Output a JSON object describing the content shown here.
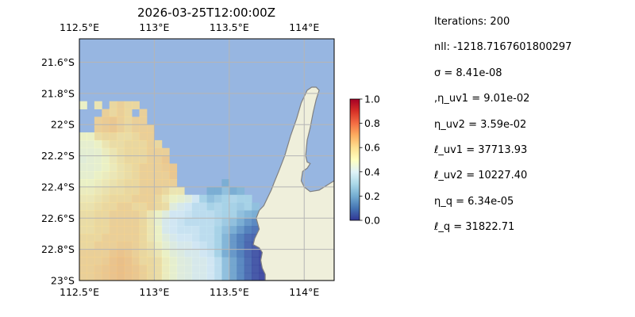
{
  "chart_data": {
    "type": "heatmap",
    "title": "2026-03-25T12:00:00Z",
    "x_axis": {
      "range": [
        112.5,
        114.2
      ],
      "ticks": [
        112.5,
        113.0,
        113.5,
        114.0
      ],
      "tick_labels": [
        "112.5°E",
        "113°E",
        "113.5°E",
        "114°E"
      ]
    },
    "y_axis": {
      "range": [
        -23.0,
        -21.45
      ],
      "ticks": [
        -21.6,
        -21.8,
        -22.0,
        -22.2,
        -22.4,
        -22.6,
        -22.8,
        -23.0
      ],
      "tick_labels": [
        "21.6°S",
        "21.8°S",
        "22°S",
        "22.2°S",
        "22.4°S",
        "22.6°S",
        "22.8°S",
        "23°S"
      ]
    },
    "grid": true,
    "colormap": "RdYlBu_r",
    "colorbar": {
      "range": [
        0.0,
        1.0
      ],
      "ticks": [
        0.0,
        0.2,
        0.4,
        0.6,
        0.8,
        1.0
      ],
      "tick_labels": [
        "0.0",
        "0.2",
        "0.4",
        "0.6",
        "0.8",
        "1.0"
      ]
    },
    "colors": {
      "ocean": "#97b6e1",
      "land": "#efefdb",
      "coast": "#808080",
      "grid": "#b5b5b5"
    },
    "field": {
      "lon_min": 112.5,
      "lat_max": -21.8,
      "dlon": 0.05,
      "dlat": 0.05,
      "ncols": 26,
      "nrows": 25,
      "opacity": 0.8,
      "rows": [
        [
          null,
          null,
          null,
          null,
          null,
          null,
          null,
          null,
          null,
          null,
          null,
          null,
          null,
          null,
          null,
          null,
          null,
          null,
          null,
          null,
          null,
          null,
          null,
          null,
          null,
          null
        ],
        [
          0.5,
          null,
          0.55,
          null,
          0.6,
          0.62,
          0.6,
          0.6,
          null,
          null,
          null,
          null,
          null,
          null,
          null,
          null,
          null,
          null,
          null,
          null,
          null,
          null,
          null,
          null,
          null,
          null
        ],
        [
          null,
          null,
          null,
          0.62,
          0.6,
          0.62,
          0.6,
          null,
          0.62,
          null,
          null,
          null,
          null,
          null,
          null,
          null,
          null,
          null,
          null,
          null,
          null,
          null,
          null,
          null,
          null,
          null
        ],
        [
          null,
          null,
          0.62,
          0.63,
          0.64,
          0.62,
          0.6,
          0.62,
          0.62,
          null,
          null,
          null,
          null,
          null,
          null,
          null,
          null,
          null,
          null,
          null,
          null,
          null,
          null,
          null,
          null,
          null
        ],
        [
          null,
          null,
          0.62,
          0.63,
          0.64,
          0.62,
          0.6,
          0.62,
          0.62,
          0.62,
          null,
          null,
          null,
          null,
          null,
          null,
          null,
          null,
          null,
          null,
          null,
          null,
          null,
          null,
          null,
          null
        ],
        [
          0.5,
          0.5,
          0.58,
          0.6,
          0.6,
          0.58,
          0.58,
          0.6,
          0.62,
          0.62,
          null,
          null,
          null,
          null,
          null,
          null,
          null,
          null,
          null,
          null,
          null,
          null,
          null,
          null,
          null,
          null
        ],
        [
          0.48,
          0.48,
          0.5,
          0.55,
          0.58,
          0.58,
          0.6,
          0.6,
          0.6,
          0.62,
          0.6,
          null,
          null,
          null,
          null,
          null,
          null,
          null,
          null,
          null,
          null,
          null,
          null,
          null,
          null,
          null
        ],
        [
          0.47,
          0.47,
          0.48,
          0.52,
          0.55,
          0.58,
          0.6,
          0.6,
          0.6,
          0.62,
          0.62,
          0.62,
          null,
          null,
          null,
          null,
          null,
          null,
          null,
          null,
          null,
          null,
          null,
          null,
          null,
          null
        ],
        [
          0.46,
          0.47,
          0.48,
          0.5,
          0.54,
          0.57,
          0.6,
          0.6,
          0.6,
          0.62,
          0.62,
          0.64,
          null,
          null,
          null,
          null,
          null,
          null,
          null,
          null,
          null,
          null,
          null,
          null,
          null,
          null
        ],
        [
          0.47,
          0.47,
          0.48,
          0.5,
          0.53,
          0.56,
          0.58,
          0.6,
          0.62,
          0.62,
          0.62,
          0.63,
          0.64,
          null,
          null,
          null,
          null,
          null,
          null,
          null,
          null,
          null,
          null,
          null,
          null,
          null
        ],
        [
          0.48,
          0.48,
          0.5,
          0.52,
          0.54,
          0.56,
          0.58,
          0.6,
          0.62,
          0.62,
          0.62,
          0.62,
          0.64,
          null,
          null,
          null,
          null,
          null,
          null,
          null,
          null,
          null,
          null,
          null,
          null,
          null
        ],
        [
          0.5,
          0.5,
          0.52,
          0.54,
          0.56,
          0.58,
          0.6,
          0.6,
          0.62,
          0.62,
          0.62,
          0.62,
          0.62,
          null,
          null,
          null,
          null,
          null,
          null,
          0.2,
          null,
          null,
          null,
          null,
          null,
          null
        ],
        [
          0.52,
          0.52,
          0.54,
          0.56,
          0.58,
          0.58,
          0.6,
          0.6,
          0.62,
          0.62,
          0.62,
          0.6,
          0.55,
          0.55,
          null,
          null,
          null,
          0.2,
          0.2,
          0.25,
          0.2,
          0.22,
          null,
          null,
          null,
          null
        ],
        [
          0.54,
          0.54,
          0.56,
          0.58,
          0.6,
          0.6,
          0.6,
          0.62,
          0.62,
          0.62,
          0.6,
          0.55,
          0.5,
          0.48,
          0.45,
          0.4,
          0.3,
          0.25,
          0.28,
          0.3,
          0.32,
          0.3,
          0.3,
          null,
          null,
          null
        ],
        [
          0.56,
          0.56,
          0.58,
          0.6,
          0.6,
          0.62,
          0.62,
          0.6,
          0.6,
          0.62,
          0.6,
          0.58,
          0.45,
          0.42,
          0.4,
          0.35,
          0.35,
          0.3,
          0.32,
          0.3,
          0.3,
          0.28,
          0.3,
          0.25,
          null,
          null
        ],
        [
          0.58,
          0.58,
          0.6,
          0.6,
          0.62,
          0.62,
          0.62,
          0.62,
          0.6,
          0.55,
          0.5,
          0.45,
          0.4,
          0.4,
          0.38,
          0.35,
          0.35,
          0.35,
          0.32,
          0.3,
          0.3,
          0.25,
          0.22,
          0.2,
          0.15,
          null
        ],
        [
          0.58,
          0.58,
          0.6,
          0.6,
          0.62,
          0.62,
          0.62,
          0.62,
          0.6,
          0.55,
          0.48,
          0.42,
          0.4,
          0.38,
          0.35,
          0.35,
          0.35,
          0.35,
          0.32,
          0.28,
          0.25,
          0.2,
          0.15,
          0.12,
          0.1,
          null
        ],
        [
          0.58,
          0.58,
          0.6,
          0.6,
          0.62,
          0.62,
          0.62,
          0.62,
          0.6,
          0.55,
          0.5,
          0.42,
          0.4,
          0.38,
          0.38,
          0.38,
          0.35,
          0.35,
          0.3,
          0.25,
          0.2,
          0.15,
          0.1,
          0.08,
          0.05,
          0.05
        ],
        [
          0.6,
          0.6,
          0.6,
          0.62,
          0.62,
          0.62,
          0.62,
          0.62,
          0.6,
          0.55,
          0.5,
          0.45,
          0.42,
          0.4,
          0.4,
          0.38,
          0.35,
          0.35,
          0.3,
          0.22,
          0.15,
          0.1,
          0.06,
          0.05,
          0.04,
          0.04
        ],
        [
          0.6,
          0.6,
          0.62,
          0.62,
          0.62,
          0.63,
          0.63,
          0.62,
          0.6,
          0.57,
          0.52,
          0.47,
          0.44,
          0.42,
          0.42,
          0.4,
          0.38,
          0.35,
          0.3,
          0.22,
          0.15,
          0.1,
          0.05,
          0.03,
          0.02,
          0.02
        ],
        [
          0.62,
          0.62,
          0.62,
          0.62,
          0.64,
          0.65,
          0.64,
          0.62,
          0.6,
          0.58,
          0.55,
          0.5,
          0.46,
          0.44,
          0.42,
          0.42,
          0.4,
          0.38,
          0.3,
          0.2,
          0.15,
          0.1,
          0.05,
          0.02,
          0.0,
          0.0
        ],
        [
          0.62,
          0.62,
          0.62,
          0.63,
          0.65,
          0.66,
          0.65,
          0.63,
          0.6,
          0.6,
          0.58,
          0.52,
          0.48,
          0.45,
          0.44,
          0.42,
          0.42,
          0.4,
          0.35,
          0.25,
          0.18,
          0.12,
          0.06,
          0.02,
          0.0,
          0.0
        ],
        [
          0.62,
          0.62,
          0.63,
          0.64,
          0.65,
          0.66,
          0.65,
          0.64,
          0.62,
          0.6,
          0.58,
          0.52,
          0.48,
          0.45,
          0.44,
          0.42,
          0.42,
          0.4,
          0.35,
          0.25,
          0.18,
          0.12,
          0.06,
          0.02,
          0.0,
          0.0
        ],
        [
          0.62,
          0.62,
          0.63,
          0.64,
          0.65,
          0.66,
          0.65,
          0.64,
          0.62,
          0.6,
          0.58,
          0.52,
          0.48,
          0.45,
          0.44,
          0.42,
          0.42,
          0.4,
          0.35,
          0.25,
          0.18,
          0.12,
          0.06,
          0.02,
          0.0,
          0.0
        ],
        [
          0.62,
          0.62,
          0.63,
          0.64,
          0.65,
          0.66,
          0.65,
          0.64,
          0.62,
          0.6,
          0.58,
          0.52,
          0.48,
          0.45,
          0.44,
          0.42,
          0.42,
          0.4,
          0.35,
          0.25,
          0.18,
          0.12,
          0.06,
          0.02,
          0.0,
          0.0
        ]
      ]
    },
    "coastline": [
      [
        114.02,
        -21.78
      ],
      [
        114.05,
        -21.76
      ],
      [
        114.08,
        -21.76
      ],
      [
        114.1,
        -21.78
      ],
      [
        114.08,
        -21.84
      ],
      [
        114.06,
        -21.92
      ],
      [
        114.04,
        -22.02
      ],
      [
        114.02,
        -22.1
      ],
      [
        114.01,
        -22.2
      ],
      [
        114.02,
        -22.24
      ],
      [
        114.04,
        -22.25
      ],
      [
        114.02,
        -22.28
      ],
      [
        113.99,
        -22.3
      ],
      [
        113.98,
        -22.36
      ],
      [
        114.0,
        -22.4
      ],
      [
        114.04,
        -22.43
      ],
      [
        114.1,
        -22.42
      ],
      [
        114.2,
        -22.36
      ],
      [
        114.2,
        -23.0
      ],
      [
        113.74,
        -23.0
      ],
      [
        113.74,
        -22.96
      ],
      [
        113.72,
        -22.92
      ],
      [
        113.71,
        -22.87
      ],
      [
        113.72,
        -22.82
      ],
      [
        113.7,
        -22.79
      ],
      [
        113.66,
        -22.77
      ],
      [
        113.67,
        -22.73
      ],
      [
        113.7,
        -22.67
      ],
      [
        113.68,
        -22.6
      ],
      [
        113.7,
        -22.55
      ],
      [
        113.73,
        -22.52
      ],
      [
        113.76,
        -22.46
      ],
      [
        113.78,
        -22.42
      ],
      [
        113.8,
        -22.37
      ],
      [
        113.83,
        -22.3
      ],
      [
        113.87,
        -22.2
      ],
      [
        113.91,
        -22.07
      ],
      [
        113.95,
        -21.96
      ],
      [
        113.98,
        -21.86
      ],
      [
        114.02,
        -21.78
      ]
    ]
  },
  "info": {
    "iterations": "Iterations: 200",
    "nll": "nll: -1218.7167601800297",
    "sigma": "σ = 8.41e-08",
    "eta_uv1": ",η_uv1 = 9.01e-02",
    "eta_uv2": "η_uv2 = 3.59e-02",
    "ell_uv1": "ℓ_uv1 = 37713.93",
    "ell_uv2": "ℓ_uv2 = 10227.40",
    "eta_q": "η_q = 6.34e-05",
    "ell_q": "ℓ_q = 31822.71"
  }
}
